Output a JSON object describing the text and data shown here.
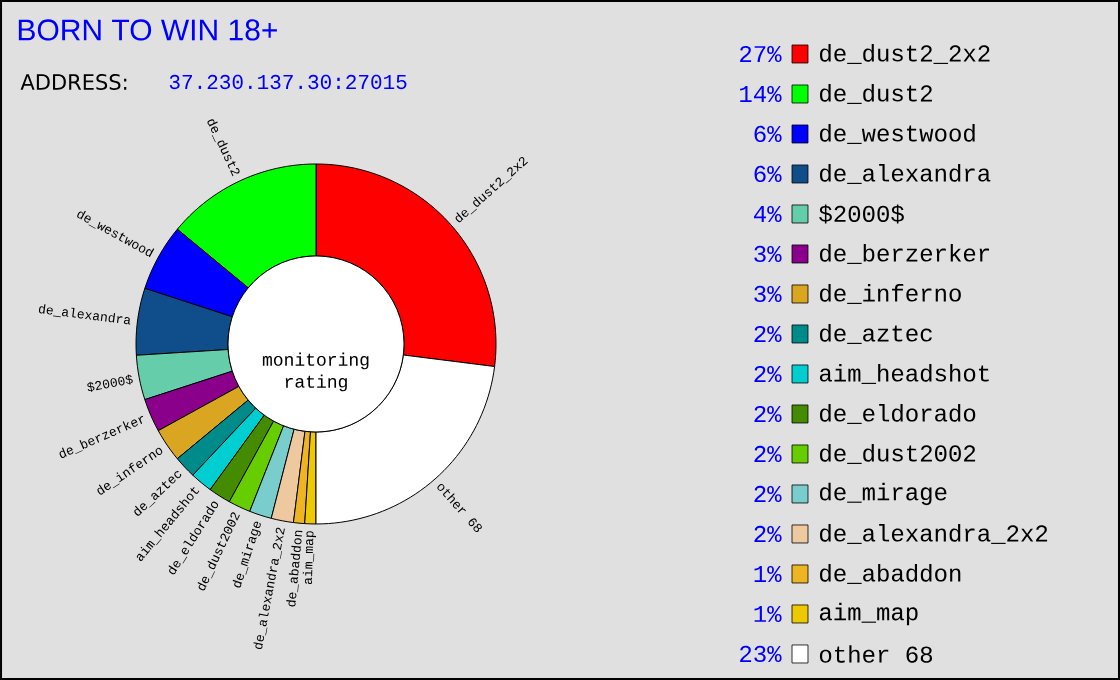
{
  "chart_data": {
    "type": "donut",
    "title": "BORN TO WIN 18+",
    "categories": [
      "de_dust2_2x2",
      "de_dust2",
      "de_westwood",
      "de_alexandra",
      "$2000$",
      "de_berzerker",
      "de_inferno",
      "de_aztec",
      "aim_headshot",
      "de_eldorado",
      "de_dust2002",
      "de_mirage",
      "de_alexandra_2x2",
      "de_abaddon",
      "aim_map",
      "other 68"
    ],
    "values": [
      27,
      14,
      6,
      6,
      4,
      3,
      3,
      2,
      2,
      2,
      2,
      2,
      2,
      1,
      1,
      23
    ],
    "value_labels": [
      "27%",
      "14%",
      "6%",
      "6%",
      "4%",
      "3%",
      "3%",
      "2%",
      "2%",
      "2%",
      "2%",
      "2%",
      "2%",
      "1%",
      "1%",
      "23%"
    ],
    "colors": [
      "#ff0000",
      "#00ff00",
      "#0000ff",
      "#104e8b",
      "#66cdaa",
      "#8b008b",
      "#daa520",
      "#008b8b",
      "#00ced1",
      "#458b00",
      "#66cd00",
      "#79cdcd",
      "#eec9a0",
      "#eeb422",
      "#eec900",
      "#ffffff"
    ],
    "legend": "right",
    "annotations": [
      "ADDRESS:",
      "37.230.137.30:27015",
      "monitoring rating"
    ]
  }
}
